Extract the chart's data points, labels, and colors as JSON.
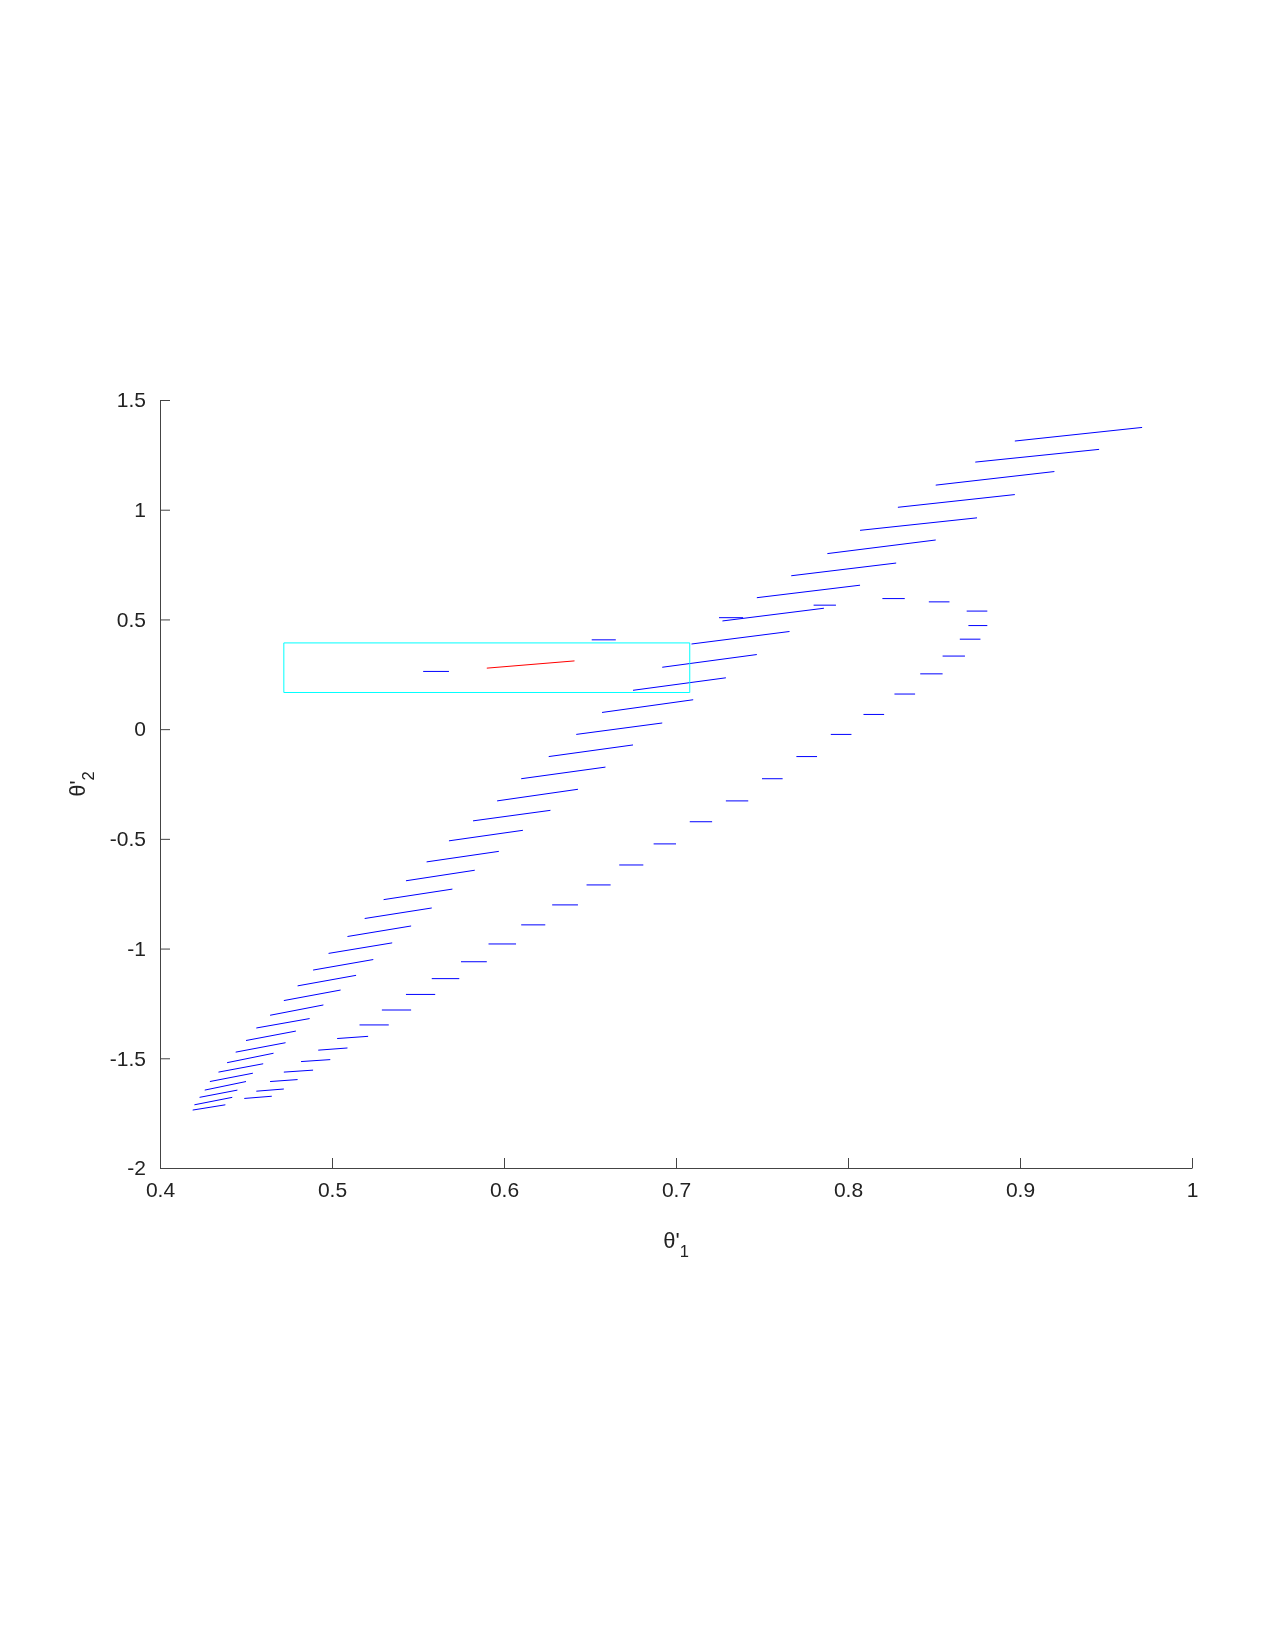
{
  "chart_data": {
    "type": "line",
    "xlabel": "θ'$_{1}$",
    "ylabel": "θ'$_{2}$",
    "xlim": [
      0.4,
      1
    ],
    "ylim": [
      -2,
      1.5
    ],
    "xticks": [
      0.4,
      0.5,
      0.6,
      0.7,
      0.8,
      0.9,
      1
    ],
    "yticks": [
      -2,
      -1.5,
      -1,
      -0.5,
      0,
      0.5,
      1,
      1.5
    ],
    "grid": false,
    "series": [
      {
        "color": "#0000ff",
        "x": [
          0.897,
          0.971,
          null,
          0.874,
          0.946,
          null,
          0.851,
          0.92,
          null,
          0.829,
          0.897,
          null,
          0.807,
          0.875,
          null,
          0.788,
          0.851,
          null,
          0.767,
          0.828,
          null,
          0.747,
          0.807,
          null,
          0.727,
          0.786,
          null,
          0.709,
          0.766,
          null,
          0.692,
          0.747,
          null,
          0.675,
          0.729,
          null,
          0.657,
          0.71,
          null,
          0.642,
          0.692,
          null,
          0.626,
          0.675,
          null,
          0.61,
          0.659,
          null,
          0.596,
          0.643,
          null,
          0.582,
          0.627,
          null,
          0.568,
          0.611,
          null,
          0.555,
          0.597,
          null,
          0.543,
          0.583,
          null,
          0.53,
          0.57,
          null,
          0.519,
          0.558,
          null,
          0.509,
          0.546,
          null,
          0.498,
          0.535,
          null,
          0.489,
          0.524,
          null,
          0.48,
          0.514,
          null,
          0.472,
          0.505,
          null,
          0.464,
          0.495,
          null,
          0.456,
          0.487,
          null,
          0.45,
          0.479,
          null,
          0.444,
          0.473,
          null,
          0.439,
          0.466,
          null,
          0.434,
          0.46,
          null,
          0.429,
          0.454,
          null,
          0.426,
          0.45,
          null,
          0.423,
          0.445,
          null,
          0.42,
          0.442,
          null,
          0.419,
          0.438
        ],
        "values": [
          1.313,
          1.375,
          null,
          1.217,
          1.275,
          null,
          1.112,
          1.174,
          null,
          1.011,
          1.069,
          null,
          0.906,
          0.963,
          null,
          0.8,
          0.862,
          null,
          0.699,
          0.757,
          null,
          0.599,
          0.656,
          null,
          0.493,
          0.551,
          null,
          0.388,
          0.445,
          null,
          0.282,
          0.34,
          null,
          0.177,
          0.234,
          null,
          0.076,
          0.134,
          null,
          -0.024,
          0.028,
          null,
          -0.125,
          -0.072,
          null,
          -0.226,
          -0.173,
          null,
          -0.327,
          -0.274,
          null,
          -0.418,
          -0.37,
          null,
          -0.509,
          -0.461,
          null,
          -0.605,
          -0.557,
          null,
          -0.691,
          -0.643,
          null,
          -0.777,
          -0.729,
          null,
          -0.863,
          -0.815,
          null,
          -0.945,
          -0.897,
          null,
          -1.022,
          -0.974,
          null,
          -1.098,
          -1.05,
          null,
          -1.17,
          -1.122,
          null,
          -1.237,
          -1.189,
          null,
          -1.304,
          -1.257,
          null,
          -1.362,
          -1.319,
          null,
          -1.419,
          -1.376,
          null,
          -1.472,
          -1.429,
          null,
          -1.52,
          -1.477,
          null,
          -1.563,
          -1.525,
          null,
          -1.606,
          -1.568,
          null,
          -1.645,
          -1.606,
          null,
          -1.678,
          -1.645,
          null,
          -1.712,
          -1.678,
          null,
          -1.736,
          -1.712
        ]
      },
      {
        "color": "#0000ff",
        "x": [
          0.651,
          0.665,
          null,
          0.553,
          0.568,
          null,
          0.725,
          0.739,
          null,
          0.78,
          0.793,
          null,
          0.82,
          0.833,
          null,
          0.847,
          0.859,
          null,
          0.869,
          0.881,
          null,
          0.87,
          0.881,
          null,
          0.865,
          0.877,
          null,
          0.855,
          0.868,
          null,
          0.842,
          0.855,
          null,
          0.827,
          0.839,
          null,
          0.809,
          0.821,
          null,
          0.79,
          0.802,
          null,
          0.77,
          0.782,
          null,
          0.75,
          0.762,
          null,
          0.729,
          0.742,
          null,
          0.708,
          0.721,
          null,
          0.687,
          0.7,
          null,
          0.667,
          0.681,
          null,
          0.648,
          0.662,
          null,
          0.628,
          0.643,
          null,
          0.61,
          0.624,
          null,
          0.591,
          0.607,
          null,
          0.575,
          0.59,
          null,
          0.558,
          0.574,
          null,
          0.543,
          0.56,
          null,
          0.529,
          0.546,
          null,
          0.516,
          0.533,
          null,
          0.503,
          0.521,
          null,
          0.492,
          0.509,
          null,
          0.482,
          0.499,
          null,
          0.472,
          0.489,
          null,
          0.464,
          0.48,
          null,
          0.456,
          0.472,
          null,
          0.449,
          0.465
        ],
        "values": [
          0.407,
          0.407,
          null,
          0.263,
          0.263,
          null,
          0.508,
          0.508,
          null,
          0.565,
          0.565,
          null,
          0.595,
          0.595,
          null,
          0.58,
          0.58,
          null,
          0.538,
          0.538,
          null,
          0.472,
          0.472,
          null,
          0.41,
          0.41,
          null,
          0.333,
          0.333,
          null,
          0.252,
          0.252,
          null,
          0.16,
          0.16,
          null,
          0.067,
          0.067,
          null,
          -0.024,
          -0.024,
          null,
          -0.125,
          -0.125,
          null,
          -0.226,
          -0.226,
          null,
          -0.327,
          -0.327,
          null,
          -0.422,
          -0.422,
          null,
          -0.523,
          -0.523,
          null,
          -0.619,
          -0.619,
          null,
          -0.71,
          -0.71,
          null,
          -0.801,
          -0.801,
          null,
          -0.892,
          -0.892,
          null,
          -0.979,
          -0.979,
          null,
          -1.06,
          -1.06,
          null,
          -1.137,
          -1.137,
          null,
          -1.209,
          -1.209,
          null,
          -1.28,
          -1.28,
          null,
          -1.348,
          -1.348,
          null,
          -1.41,
          -1.4,
          null,
          -1.463,
          -1.453,
          null,
          -1.515,
          -1.506,
          null,
          -1.563,
          -1.554,
          null,
          -1.606,
          -1.597,
          null,
          -1.65,
          -1.64,
          null,
          -1.683,
          -1.673
        ]
      },
      {
        "color": "#ff0000",
        "x": [
          0.59,
          0.641
        ],
        "values": [
          0.278,
          0.311
        ]
      },
      {
        "color": "#00ffff",
        "x": [
          0.472,
          0.708
        ],
        "values": [
          0.393,
          0.393
        ]
      },
      {
        "color": "#00ffff",
        "x": [
          0.472,
          0.708
        ],
        "values": [
          0.167,
          0.167
        ]
      },
      {
        "color": "#00ffff",
        "x": [
          0.472,
          0.472
        ],
        "values": [
          0.167,
          0.393
        ]
      },
      {
        "color": "#00ffff",
        "x": [
          0.708,
          0.708
        ],
        "values": [
          0.167,
          0.393
        ]
      }
    ]
  }
}
